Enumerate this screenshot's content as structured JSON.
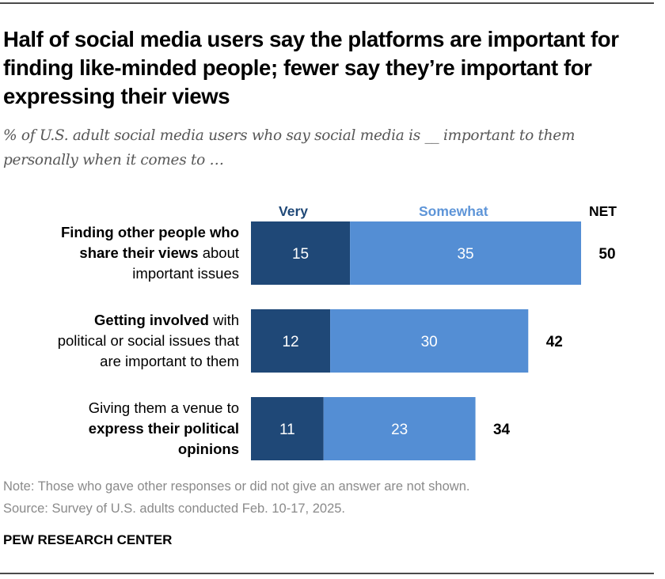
{
  "title": "Half of social media users say the platforms are important for finding like-minded people; fewer say they’re important for expressing their views",
  "subtitle": "% of U.S. adult social media users who say social media is __ important to them personally when it comes to …",
  "colors": {
    "very": "#1f4877",
    "somewhat": "#548ed4",
    "very_legend": "#1f4877",
    "somewhat_legend": "#5e95d8"
  },
  "chart_data": {
    "type": "bar",
    "orientation": "horizontal",
    "stacked": true,
    "title": "Half of social media users say the platforms are important for finding like-minded people; fewer say they’re important for expressing their views",
    "subtitle": "% of U.S. adult social media users who say social media is __ important to them personally when it comes to …",
    "categories": [
      "Finding other people who share their views about important issues",
      "Getting involved with political or social issues that are important to them",
      "Giving them a venue to express their political opinions"
    ],
    "category_label_parts": [
      [
        {
          "text": "Finding other people who",
          "bold": true
        },
        {
          "text": "share their views",
          "bold": true,
          "br": true
        },
        {
          "text": " about",
          "bold": false
        },
        {
          "text": "important issues",
          "bold": false,
          "br": true
        }
      ],
      [
        {
          "text": "Getting involved",
          "bold": true
        },
        {
          "text": " with",
          "bold": false
        },
        {
          "text": "political or social issues that",
          "bold": false,
          "br": true
        },
        {
          "text": "are important to them",
          "bold": false,
          "br": true
        }
      ],
      [
        {
          "text": "Giving them a venue to",
          "bold": false
        },
        {
          "text": "express their political",
          "bold": true,
          "br": true
        },
        {
          "text": "opinions",
          "bold": true,
          "br": true
        }
      ]
    ],
    "series": [
      {
        "name": "Very",
        "values": [
          15,
          12,
          11
        ]
      },
      {
        "name": "Somewhat",
        "values": [
          35,
          30,
          23
        ]
      }
    ],
    "net_label": "NET",
    "net": [
      50,
      42,
      34
    ],
    "xlim": [
      0,
      50
    ],
    "grid": false,
    "legend": "top"
  },
  "footer": {
    "note": "Note: Those who gave other responses or did not give an answer are not shown.",
    "source": "Source: Survey of U.S. adults conducted Feb. 10-17, 2025.",
    "brand": "PEW RESEARCH CENTER"
  }
}
